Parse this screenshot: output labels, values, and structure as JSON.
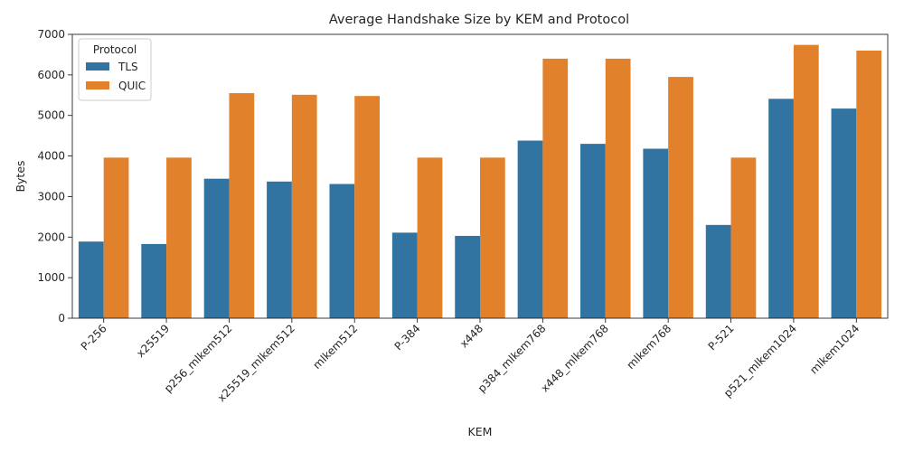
{
  "chart_data": {
    "type": "bar",
    "title": "Average Handshake Size by KEM and Protocol",
    "xlabel": "KEM",
    "ylabel": "Bytes",
    "ylim": [
      0,
      7000
    ],
    "yticks": [
      "0",
      "1000",
      "2000",
      "3000",
      "4000",
      "5000",
      "6000",
      "7000"
    ],
    "grid": false,
    "legend": {
      "title": "Protocol",
      "placement": "top-left"
    },
    "categories": [
      "P-256",
      "x25519",
      "p256_mlkem512",
      "x25519_mlkem512",
      "mlkem512",
      "P-384",
      "x448",
      "p384_mlkem768",
      "x448_mlkem768",
      "mlkem768",
      "P-521",
      "p521_mlkem1024",
      "mlkem1024"
    ],
    "series": [
      {
        "name": "TLS",
        "color": "#3274a1",
        "values": [
          1890,
          1830,
          3440,
          3370,
          3310,
          2110,
          2030,
          4380,
          4300,
          4180,
          2300,
          5410,
          5170
        ]
      },
      {
        "name": "QUIC",
        "color": "#e1812c",
        "values": [
          3960,
          3960,
          5550,
          5510,
          5480,
          3960,
          3960,
          6400,
          6400,
          5950,
          3960,
          6740,
          6600
        ]
      }
    ]
  }
}
